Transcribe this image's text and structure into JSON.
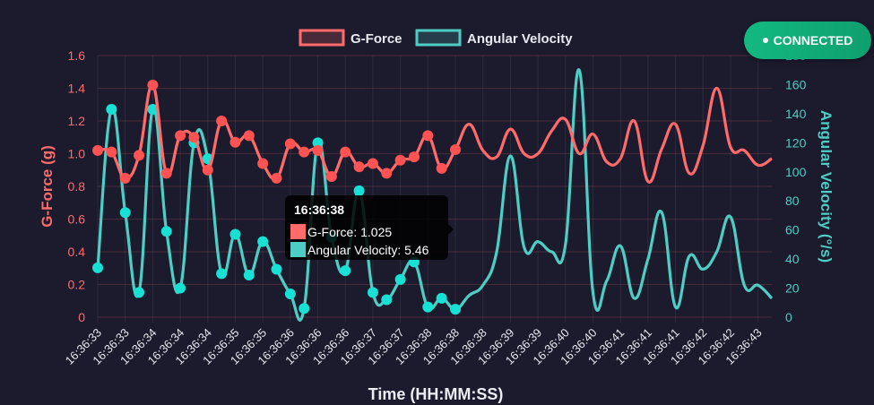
{
  "status_badge": {
    "label": "CONNECTED",
    "color": "#12b981"
  },
  "tooltip": {
    "title": "16:36:38",
    "gforce_label": "G-Force: 1.025",
    "angular_label": "Angular Velocity: 5.46"
  },
  "chart_data": {
    "type": "line",
    "xlabel": "Time (HH:MM:SS)",
    "grid": true,
    "legend_position": "top",
    "x_tick_labels": [
      "16:36:33",
      "16:36:33",
      "16:36:34",
      "16:36:34",
      "16:36:34",
      "16:36:35",
      "16:36:35",
      "16:36:36",
      "16:36:36",
      "16:36:36",
      "16:36:37",
      "16:36:37",
      "16:36:38",
      "16:36:38",
      "16:36:38",
      "16:36:39",
      "16:36:39",
      "16:36:40",
      "16:36:40",
      "16:36:41",
      "16:36:41",
      "16:36:41",
      "16:36:42",
      "16:36:42",
      "16:36:43"
    ],
    "y_left": {
      "label": "G-Force (g)",
      "range": [
        0,
        1.6
      ],
      "ticks": [
        "0",
        "0.2",
        "0.4",
        "0.6",
        "0.8",
        "1.0",
        "1.2",
        "1.4",
        "1.6"
      ],
      "color": "#ff6b6b"
    },
    "y_right": {
      "label": "Angular Velocity (°/s)",
      "range": [
        0,
        180
      ],
      "ticks": [
        "0",
        "20",
        "40",
        "60",
        "80",
        "100",
        "120",
        "140",
        "160",
        "180"
      ],
      "color": "#4ecdc4"
    },
    "series": [
      {
        "name": "G-Force",
        "axis": "left",
        "color": "#ff6b6b",
        "values": [
          1.02,
          1.01,
          0.85,
          0.99,
          1.42,
          0.88,
          1.11,
          1.1,
          0.9,
          1.2,
          1.07,
          1.11,
          0.94,
          0.85,
          1.06,
          1.01,
          1.02,
          0.86,
          1.01,
          0.92,
          0.94,
          0.88,
          0.96,
          0.98,
          1.11,
          0.91,
          1.025,
          1.18,
          1.02,
          0.98,
          1.15,
          1.0,
          1.0,
          1.14,
          1.21,
          1.0,
          1.12,
          0.95,
          0.97,
          1.2,
          0.83,
          1.03,
          1.18,
          0.88,
          1.05,
          1.4,
          1.04,
          1.02,
          0.93,
          0.97
        ]
      },
      {
        "name": "Angular Velocity",
        "axis": "right",
        "color": "#4ecdc4",
        "values": [
          34,
          143,
          72,
          17,
          143,
          59,
          20,
          120,
          109,
          30,
          57,
          29,
          52,
          33,
          16,
          6,
          120,
          55,
          32,
          87,
          17,
          12,
          26,
          38,
          7,
          13,
          5.46,
          15,
          22,
          45,
          111,
          48,
          52,
          45,
          50,
          170,
          17,
          25,
          49,
          13,
          40,
          72,
          7,
          42,
          33,
          45,
          69,
          22,
          22,
          13
        ]
      }
    ]
  }
}
